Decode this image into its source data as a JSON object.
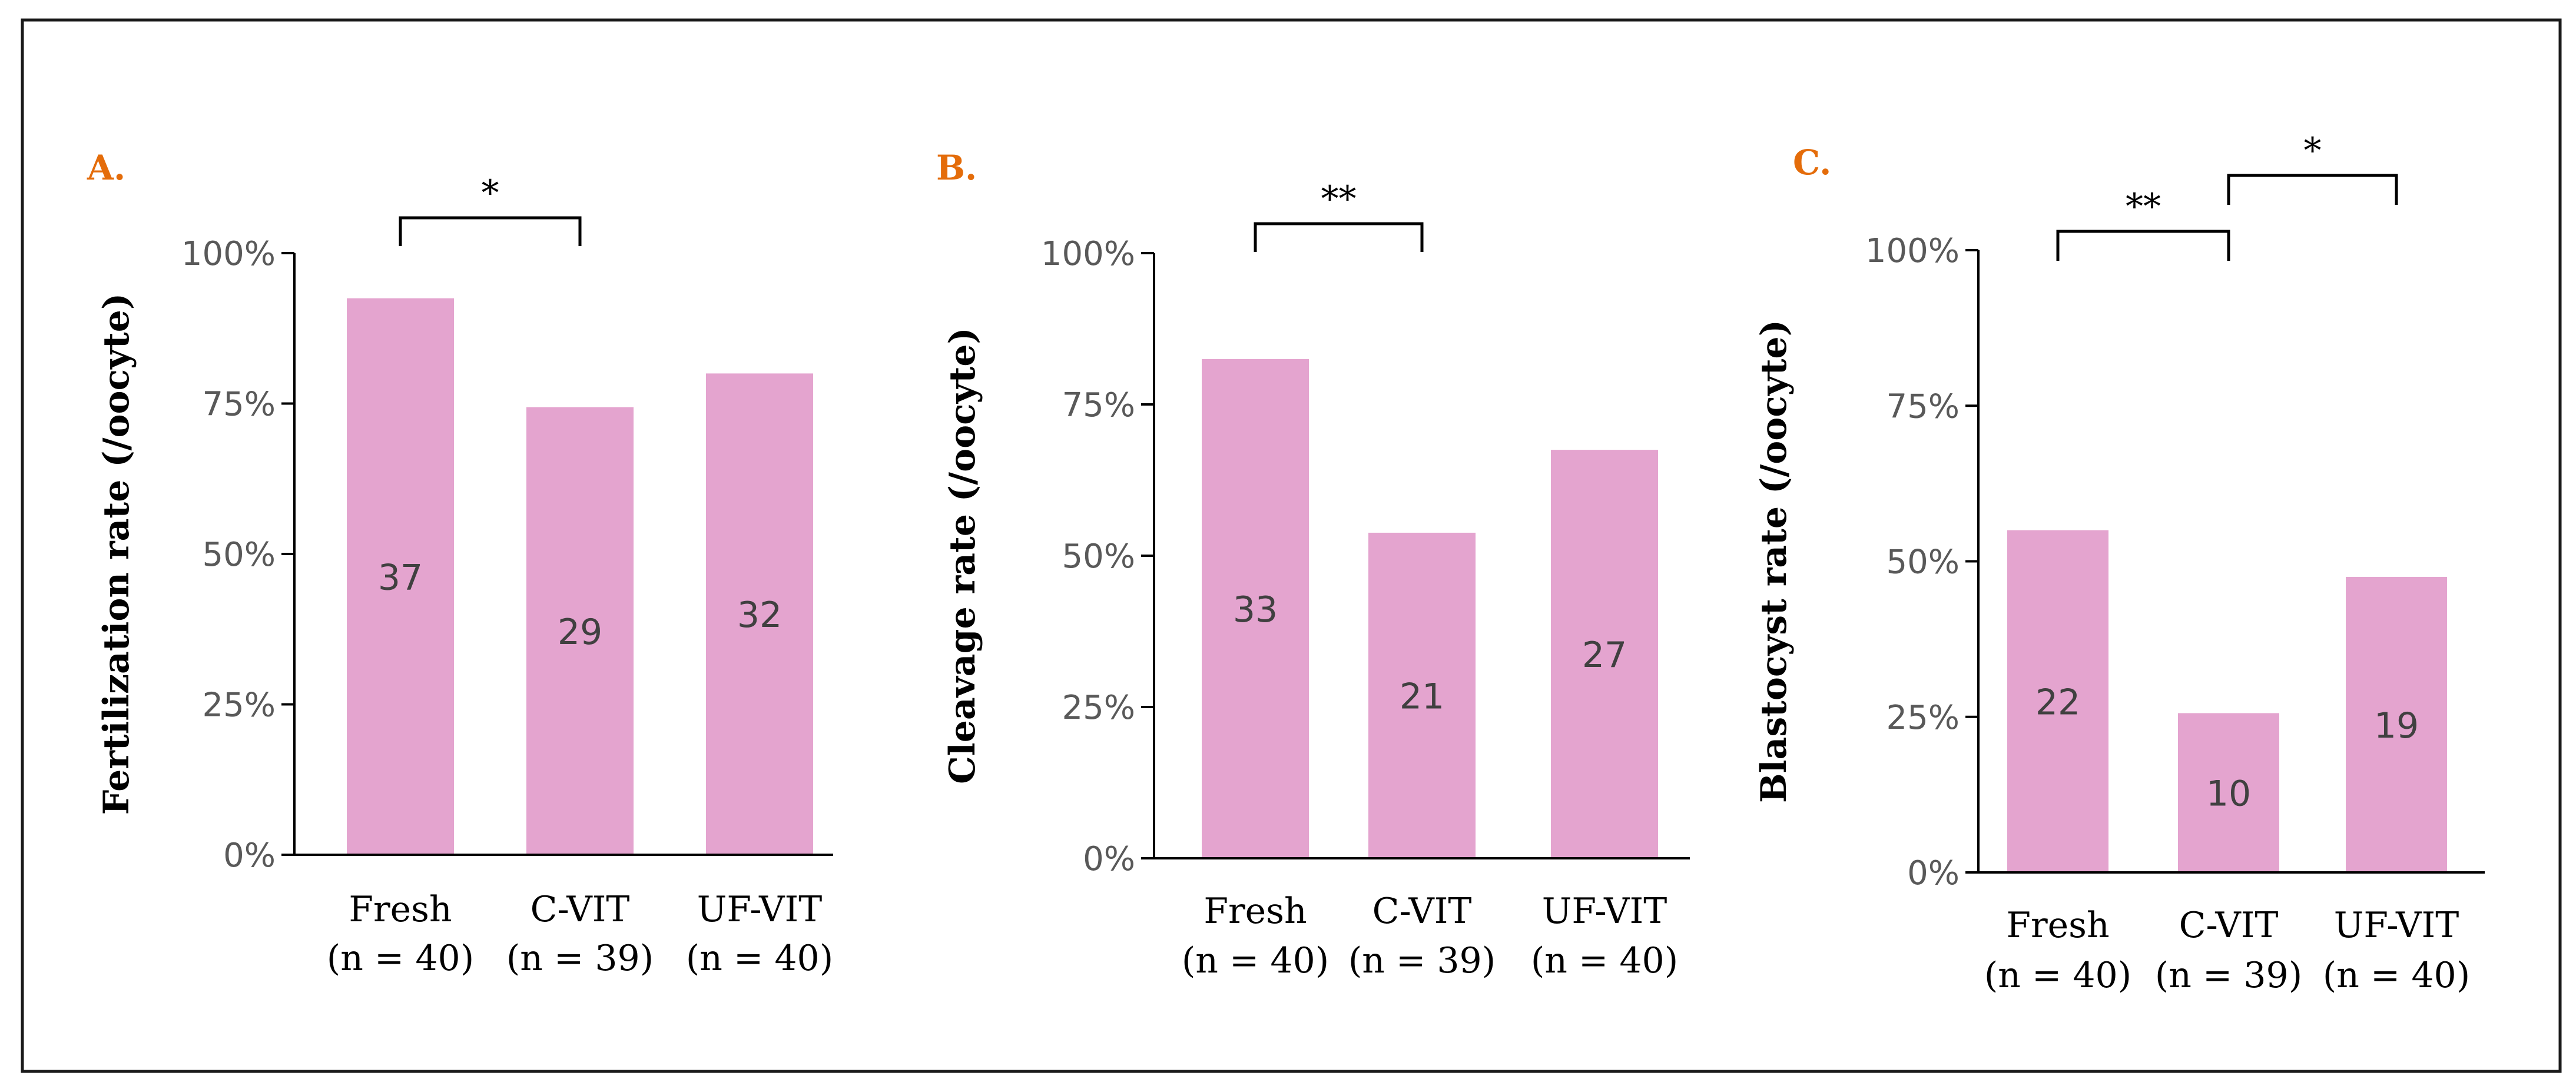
{
  "figure": {
    "bar_color": "#e4a4cf",
    "axis_color": "#000000",
    "tick_label_color": "#595959",
    "bar_label_color": "#404040",
    "panel_label_color": "#e46c0a"
  },
  "chart_data": [
    {
      "type": "bar",
      "panel_label": "A.",
      "ylabel": "Fertilization  rate (/oocyte)",
      "categories": [
        "Fresh",
        "C-VIT",
        "UF-VIT"
      ],
      "category_n": [
        "(n = 40)",
        "(n = 39)",
        "(n = 40)"
      ],
      "values": [
        0.925,
        0.744,
        0.8
      ],
      "bar_labels": [
        "37",
        "29",
        "32"
      ],
      "ylim": [
        0,
        1
      ],
      "yticks": [
        0,
        0.25,
        0.5,
        0.75,
        1
      ],
      "ytick_labels": [
        "0%",
        "25%",
        "50%",
        "75%",
        "100%"
      ],
      "significance": [
        {
          "from": 0,
          "to": 1,
          "label": "*"
        }
      ]
    },
    {
      "type": "bar",
      "panel_label": "B.",
      "ylabel": "Cleavage rate (/oocyte)",
      "categories": [
        "Fresh",
        "C-VIT",
        "UF-VIT"
      ],
      "category_n": [
        "(n = 40)",
        "(n = 39)",
        "(n = 40)"
      ],
      "values": [
        0.825,
        0.538,
        0.675
      ],
      "bar_labels": [
        "33",
        "21",
        "27"
      ],
      "ylim": [
        0,
        1
      ],
      "yticks": [
        0,
        0.25,
        0.5,
        0.75,
        1
      ],
      "ytick_labels": [
        "0%",
        "25%",
        "50%",
        "75%",
        "100%"
      ],
      "significance": [
        {
          "from": 0,
          "to": 1,
          "label": "**"
        }
      ]
    },
    {
      "type": "bar",
      "panel_label": "C.",
      "ylabel": "Blastocyst rate (/oocyte)",
      "categories": [
        "Fresh",
        "C-VIT",
        "UF-VIT"
      ],
      "category_n": [
        "(n = 40)",
        "(n = 39)",
        "(n = 40)"
      ],
      "values": [
        0.55,
        0.256,
        0.475
      ],
      "bar_labels": [
        "22",
        "10",
        "19"
      ],
      "ylim": [
        0,
        1
      ],
      "yticks": [
        0,
        0.25,
        0.5,
        0.75,
        1
      ],
      "ytick_labels": [
        "0%",
        "25%",
        "50%",
        "75%",
        "100%"
      ],
      "significance": [
        {
          "from": 0,
          "to": 1,
          "label": "**"
        },
        {
          "from": 1,
          "to": 2,
          "label": "*"
        }
      ]
    }
  ]
}
